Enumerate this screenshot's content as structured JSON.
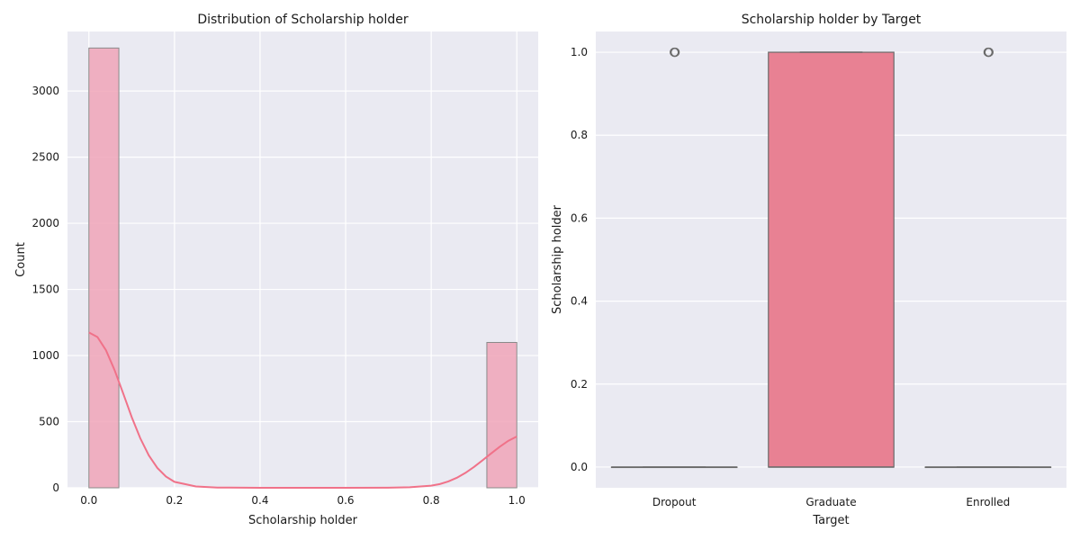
{
  "chart_data": [
    {
      "type": "histogram",
      "title": "Distribution of Scholarship holder",
      "xlabel": "Scholarship holder",
      "ylabel": "Count",
      "xlim": [
        -0.05,
        1.05
      ],
      "ylim": [
        0,
        3450
      ],
      "x_ticks": [
        0.0,
        0.2,
        0.4,
        0.6,
        0.8,
        1.0
      ],
      "x_tick_labels": [
        "0.0",
        "0.2",
        "0.4",
        "0.6",
        "0.8",
        "1.0"
      ],
      "y_ticks": [
        0,
        500,
        1000,
        1500,
        2000,
        2500,
        3000
      ],
      "y_tick_labels": [
        "0",
        "500",
        "1000",
        "1500",
        "2000",
        "2500",
        "3000"
      ],
      "bins": [
        {
          "x0": 0.0,
          "x1": 0.07,
          "count": 3325
        },
        {
          "x0": 0.93,
          "x1": 1.0,
          "count": 1099
        }
      ],
      "kde": {
        "x": [
          0.0,
          0.02,
          0.04,
          0.06,
          0.08,
          0.1,
          0.12,
          0.14,
          0.16,
          0.18,
          0.2,
          0.25,
          0.3,
          0.4,
          0.5,
          0.6,
          0.7,
          0.75,
          0.8,
          0.82,
          0.84,
          0.86,
          0.88,
          0.9,
          0.92,
          0.94,
          0.96,
          0.98,
          1.0
        ],
        "y": [
          1175,
          1140,
          1040,
          890,
          715,
          535,
          375,
          245,
          150,
          85,
          45,
          10,
          2,
          0,
          0,
          0,
          1,
          4,
          16,
          28,
          48,
          76,
          113,
          158,
          208,
          260,
          310,
          355,
          388
        ]
      },
      "bar_color": "#f0a5b9",
      "kde_color": "#f07289",
      "grid": true
    },
    {
      "type": "box",
      "title": "Scholarship holder by Target",
      "xlabel": "Target",
      "ylabel": "Scholarship holder",
      "categories": [
        "Dropout",
        "Graduate",
        "Enrolled"
      ],
      "ylim": [
        -0.05,
        1.05
      ],
      "y_ticks": [
        0.0,
        0.2,
        0.4,
        0.6,
        0.8,
        1.0
      ],
      "y_tick_labels": [
        "0.0",
        "0.2",
        "0.4",
        "0.6",
        "0.8",
        "1.0"
      ],
      "boxes": [
        {
          "category": "Dropout",
          "q1": 0,
          "median": 0,
          "q3": 0,
          "whisker_low": 0,
          "whisker_high": 0,
          "outliers": [
            1
          ]
        },
        {
          "category": "Graduate",
          "q1": 0,
          "median": 1,
          "q3": 1,
          "whisker_low": 0,
          "whisker_high": 1,
          "outliers": []
        },
        {
          "category": "Enrolled",
          "q1": 0,
          "median": 0,
          "q3": 0,
          "whisker_low": 0,
          "whisker_high": 0,
          "outliers": [
            1
          ]
        }
      ],
      "box_color": "#e88193",
      "line_color": "#6b6b6b",
      "grid": true
    }
  ]
}
